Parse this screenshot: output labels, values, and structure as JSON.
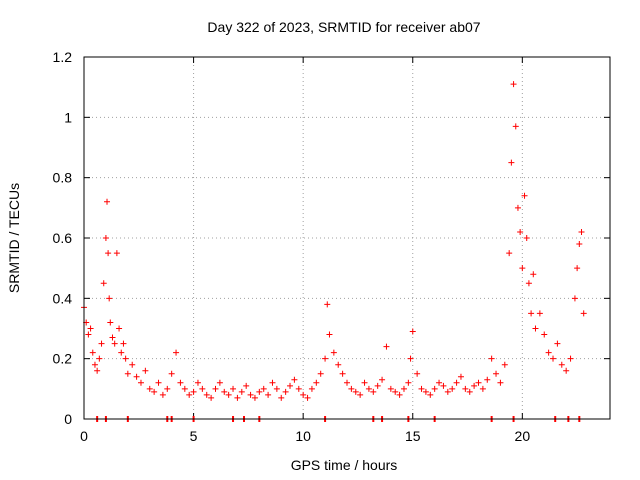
{
  "chart_data": {
    "type": "scatter",
    "title": "Day 322 of 2023, SRMTID for receiver ab07",
    "xlabel": "GPS time / hours",
    "ylabel": "SRMTID / TECUs",
    "xlim": [
      0,
      24
    ],
    "ylim": [
      0,
      1.2
    ],
    "grid": true,
    "marker": "+",
    "color": "#ff0000",
    "x_ticks": [
      0,
      5,
      10,
      15,
      20
    ],
    "x_tick_labels": [
      "0",
      "5",
      "10",
      "15",
      "20"
    ],
    "y_ticks": [
      0,
      0.2,
      0.4,
      0.6,
      0.8,
      1.0,
      1.2
    ],
    "y_tick_labels": [
      "0",
      "0.2",
      "0.4",
      "0.6",
      "0.8",
      "1",
      "1.2"
    ],
    "series": [
      {
        "name": "SRMTID",
        "x": [
          0.0,
          0.1,
          0.2,
          0.3,
          0.4,
          0.5,
          0.6,
          0.7,
          0.8,
          0.9,
          1.0,
          1.05,
          1.1,
          1.15,
          1.2,
          1.3,
          1.4,
          1.5,
          1.6,
          1.7,
          1.8,
          1.9,
          2.0,
          2.2,
          2.4,
          2.6,
          2.8,
          3.0,
          3.2,
          3.4,
          3.6,
          3.8,
          4.0,
          4.2,
          4.4,
          4.6,
          4.8,
          5.0,
          5.2,
          5.4,
          5.6,
          5.8,
          6.0,
          6.2,
          6.4,
          6.6,
          6.8,
          7.0,
          7.2,
          7.4,
          7.6,
          7.8,
          8.0,
          8.2,
          8.4,
          8.6,
          8.8,
          9.0,
          9.2,
          9.4,
          9.6,
          9.8,
          10.0,
          10.2,
          10.4,
          10.6,
          10.8,
          11.0,
          11.1,
          11.2,
          11.4,
          11.6,
          11.8,
          12.0,
          12.2,
          12.4,
          12.6,
          12.8,
          13.0,
          13.2,
          13.4,
          13.6,
          13.8,
          14.0,
          14.2,
          14.4,
          14.6,
          14.8,
          14.9,
          15.0,
          15.2,
          15.4,
          15.6,
          15.8,
          16.0,
          16.2,
          16.4,
          16.6,
          16.8,
          17.0,
          17.2,
          17.4,
          17.6,
          17.8,
          18.0,
          18.2,
          18.4,
          18.6,
          18.8,
          19.0,
          19.2,
          19.4,
          19.5,
          19.6,
          19.7,
          19.8,
          19.9,
          20.0,
          20.1,
          20.2,
          20.3,
          20.4,
          20.5,
          20.6,
          20.8,
          21.0,
          21.2,
          21.4,
          21.6,
          21.8,
          22.0,
          22.2,
          22.4,
          22.5,
          22.6,
          22.7,
          22.8
        ],
        "y": [
          0.37,
          0.32,
          0.28,
          0.3,
          0.22,
          0.18,
          0.16,
          0.2,
          0.25,
          0.45,
          0.6,
          0.72,
          0.55,
          0.4,
          0.32,
          0.27,
          0.25,
          0.55,
          0.3,
          0.22,
          0.25,
          0.2,
          0.15,
          0.18,
          0.14,
          0.12,
          0.16,
          0.1,
          0.09,
          0.12,
          0.08,
          0.1,
          0.15,
          0.22,
          0.12,
          0.1,
          0.08,
          0.09,
          0.12,
          0.1,
          0.08,
          0.07,
          0.1,
          0.12,
          0.09,
          0.08,
          0.1,
          0.07,
          0.09,
          0.11,
          0.08,
          0.07,
          0.09,
          0.1,
          0.08,
          0.12,
          0.1,
          0.07,
          0.09,
          0.11,
          0.13,
          0.1,
          0.08,
          0.07,
          0.1,
          0.12,
          0.15,
          0.2,
          0.38,
          0.28,
          0.22,
          0.18,
          0.15,
          0.12,
          0.1,
          0.09,
          0.08,
          0.12,
          0.1,
          0.09,
          0.11,
          0.13,
          0.24,
          0.1,
          0.09,
          0.08,
          0.1,
          0.12,
          0.2,
          0.29,
          0.15,
          0.1,
          0.09,
          0.08,
          0.1,
          0.12,
          0.11,
          0.09,
          0.1,
          0.12,
          0.14,
          0.1,
          0.09,
          0.11,
          0.12,
          0.1,
          0.13,
          0.2,
          0.15,
          0.12,
          0.18,
          0.55,
          0.85,
          1.11,
          0.97,
          0.7,
          0.62,
          0.5,
          0.74,
          0.6,
          0.45,
          0.35,
          0.48,
          0.3,
          0.35,
          0.28,
          0.22,
          0.2,
          0.25,
          0.18,
          0.16,
          0.2,
          0.4,
          0.5,
          0.58,
          0.62,
          0.35
        ]
      }
    ],
    "data_gaps_x": [
      0.6,
      1.0,
      2.0,
      3.8,
      4.0,
      5.0,
      6.8,
      7.3,
      8.0,
      11.0,
      13.2,
      13.6,
      14.8,
      16.0,
      18.6,
      19.6,
      21.5,
      22.1,
      22.6
    ]
  }
}
